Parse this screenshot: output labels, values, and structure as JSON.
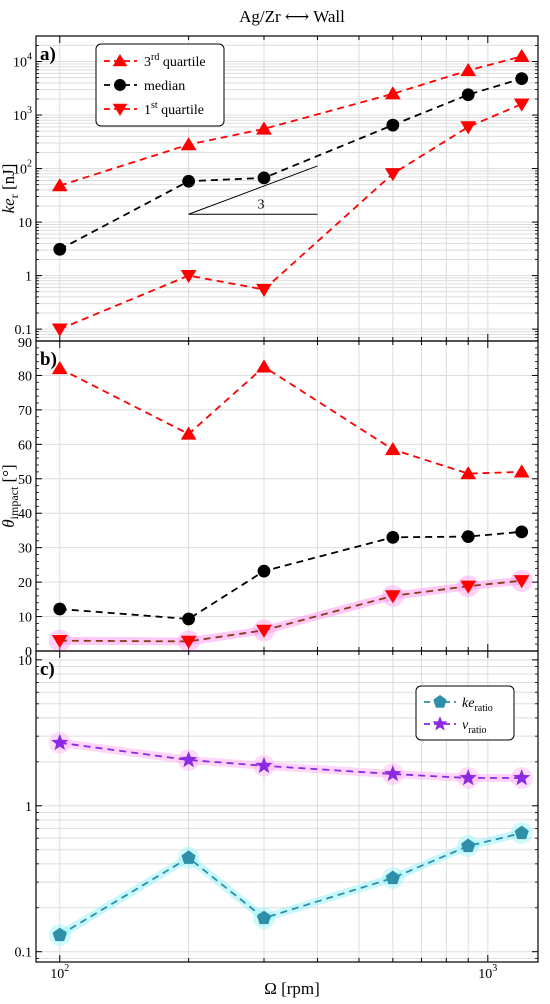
{
  "title": "Ag/Zr ⟷ Wall",
  "xlabel": "Ω [rpm]",
  "x_tick_labels": [
    "10",
    "2",
    "10",
    "3"
  ],
  "colors": {
    "red": "#ff0000",
    "black": "#000000",
    "brown": "#8b3a1a",
    "teal": "#2f8fa8",
    "purple": "#8a2be2",
    "grid": "#dddddd"
  },
  "chart_data": [
    {
      "panel_label": "a)",
      "type": "line",
      "yscale": "log",
      "ylim": [
        0.06,
        30000
      ],
      "ylabel_main": "ke",
      "ylabel_sub": "r",
      "ylabel_unit": " [nJ]",
      "y_ticks": [
        {
          "value": 0.1,
          "label": "0.1",
          "sup": ""
        },
        {
          "value": 1,
          "label": "1",
          "sup": ""
        },
        {
          "value": 10,
          "label": "10",
          "sup": ""
        },
        {
          "value": 100,
          "label": "10",
          "sup": "2"
        },
        {
          "value": 1000,
          "label": "10",
          "sup": "3"
        },
        {
          "value": 10000,
          "label": "10",
          "sup": "4"
        }
      ],
      "x": [
        100,
        200,
        300,
        600,
        900,
        1200
      ],
      "series": [
        {
          "name": "3rd quartile",
          "name_base": "3",
          "name_sup": "rd",
          "name_rest": " quartile",
          "marker": "triangle-up",
          "color": "#ff0000",
          "values": [
            48,
            280,
            550,
            2500,
            6800,
            12500
          ]
        },
        {
          "name": "median",
          "name_base": "median",
          "name_sup": "",
          "name_rest": "",
          "marker": "circle",
          "color": "#000000",
          "values": [
            3.1,
            58,
            67,
            650,
            2400,
            4800
          ]
        },
        {
          "name": "1st quartile",
          "name_base": "1",
          "name_sup": "st",
          "name_rest": " quartile",
          "marker": "triangle-down",
          "color": "#ff0000",
          "values": [
            0.1,
            1.0,
            0.55,
            80,
            600,
            1600
          ]
        }
      ],
      "slope_annotation": {
        "label": "3",
        "x_from": 200,
        "x_to": 400,
        "y_base": 14
      }
    },
    {
      "panel_label": "b)",
      "type": "line",
      "yscale": "linear",
      "ylim": [
        0,
        90
      ],
      "ylabel_main": "θ",
      "ylabel_sub": "impact",
      "ylabel_unit": " [°]",
      "y_ticks": [
        {
          "value": 0,
          "label": "0"
        },
        {
          "value": 10,
          "label": "10"
        },
        {
          "value": 20,
          "label": "20"
        },
        {
          "value": 30,
          "label": "30"
        },
        {
          "value": 40,
          "label": "40"
        },
        {
          "value": 50,
          "label": "50"
        },
        {
          "value": 60,
          "label": "60"
        },
        {
          "value": 70,
          "label": "70"
        },
        {
          "value": 80,
          "label": "80"
        },
        {
          "value": 90,
          "label": "90"
        }
      ],
      "x": [
        100,
        200,
        300,
        600,
        900,
        1200
      ],
      "series": [
        {
          "marker": "triangle-up",
          "color": "#ff0000",
          "values": [
            82,
            63,
            82.5,
            58.5,
            51.5,
            52
          ]
        },
        {
          "marker": "circle",
          "color": "#000000",
          "values": [
            12.2,
            9.3,
            23.2,
            33,
            33.2,
            34.6
          ]
        },
        {
          "marker": "triangle-down",
          "color": "#ff0000",
          "line_color": "#8b3a1a",
          "glow": "#ff9cf0",
          "values": [
            3,
            2.8,
            6,
            16,
            18.8,
            20.4
          ]
        }
      ]
    },
    {
      "panel_label": "c)",
      "type": "line",
      "yscale": "log",
      "ylim": [
        0.085,
        11.5
      ],
      "ylabel_main": "",
      "y_ticks": [
        {
          "value": 0.1,
          "label": "0.1"
        },
        {
          "value": 1,
          "label": "1"
        },
        {
          "value": 10,
          "label": "10"
        }
      ],
      "x": [
        100,
        200,
        300,
        600,
        900,
        1200
      ],
      "series": [
        {
          "name": "ke_ratio",
          "name_main": "ke",
          "name_sub": "ratio",
          "marker": "pentagon",
          "color": "#2f8fa8",
          "glow": "#9af3fa",
          "values": [
            0.13,
            0.44,
            0.17,
            0.32,
            0.53,
            0.65
          ]
        },
        {
          "name": "v_ratio",
          "name_main": "v",
          "name_sub": "ratio",
          "marker": "star",
          "color": "#8a2be2",
          "glow": "#ffb3f5",
          "values": [
            2.7,
            2.06,
            1.88,
            1.65,
            1.55,
            1.55
          ]
        }
      ]
    }
  ]
}
